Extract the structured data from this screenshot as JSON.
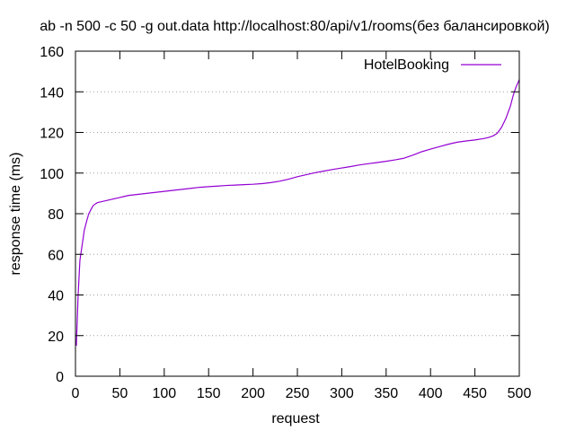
{
  "chart_data": {
    "type": "line",
    "title": "ab -n 500 -c 50 -g out.data http://localhost:80/api/v1/rooms(без балансировкой)",
    "xlabel": "request",
    "ylabel": "response time (ms)",
    "xlim": [
      0,
      500
    ],
    "ylim": [
      0,
      160
    ],
    "xticks": [
      0,
      50,
      100,
      150,
      200,
      250,
      300,
      350,
      400,
      450,
      500
    ],
    "yticks": [
      0,
      20,
      40,
      60,
      80,
      100,
      120,
      140,
      160
    ],
    "grid": "horizontal dotted",
    "legend_position": "top-right",
    "series": [
      {
        "name": "HotelBooking",
        "color": "#9400d3",
        "x": [
          1,
          3,
          5,
          8,
          10,
          13,
          15,
          18,
          20,
          23,
          25,
          30,
          35,
          40,
          45,
          50,
          55,
          60,
          70,
          80,
          90,
          100,
          110,
          120,
          130,
          140,
          150,
          160,
          170,
          180,
          190,
          200,
          210,
          220,
          230,
          240,
          250,
          260,
          270,
          280,
          290,
          300,
          310,
          320,
          330,
          340,
          350,
          360,
          370,
          380,
          390,
          400,
          410,
          420,
          430,
          440,
          450,
          460,
          465,
          470,
          475,
          480,
          485,
          490,
          493,
          496,
          498,
          500
        ],
        "y": [
          15,
          40,
          57,
          66,
          72,
          77,
          80,
          82.5,
          84,
          85,
          85.5,
          86,
          86.5,
          87,
          87.5,
          88,
          88.5,
          89,
          89.5,
          90,
          90.5,
          91,
          91.5,
          92,
          92.5,
          93,
          93.3,
          93.6,
          93.9,
          94.1,
          94.3,
          94.5,
          94.8,
          95.3,
          96,
          97,
          98.2,
          99.2,
          100.2,
          101,
          101.8,
          102.5,
          103.2,
          104,
          104.6,
          105.2,
          105.8,
          106.5,
          107.3,
          108.8,
          110.5,
          111.8,
          113,
          114.2,
          115.2,
          115.8,
          116.3,
          117,
          117.5,
          118.2,
          119.5,
          122.5,
          127,
          133,
          138,
          142,
          144,
          146
        ]
      }
    ]
  }
}
